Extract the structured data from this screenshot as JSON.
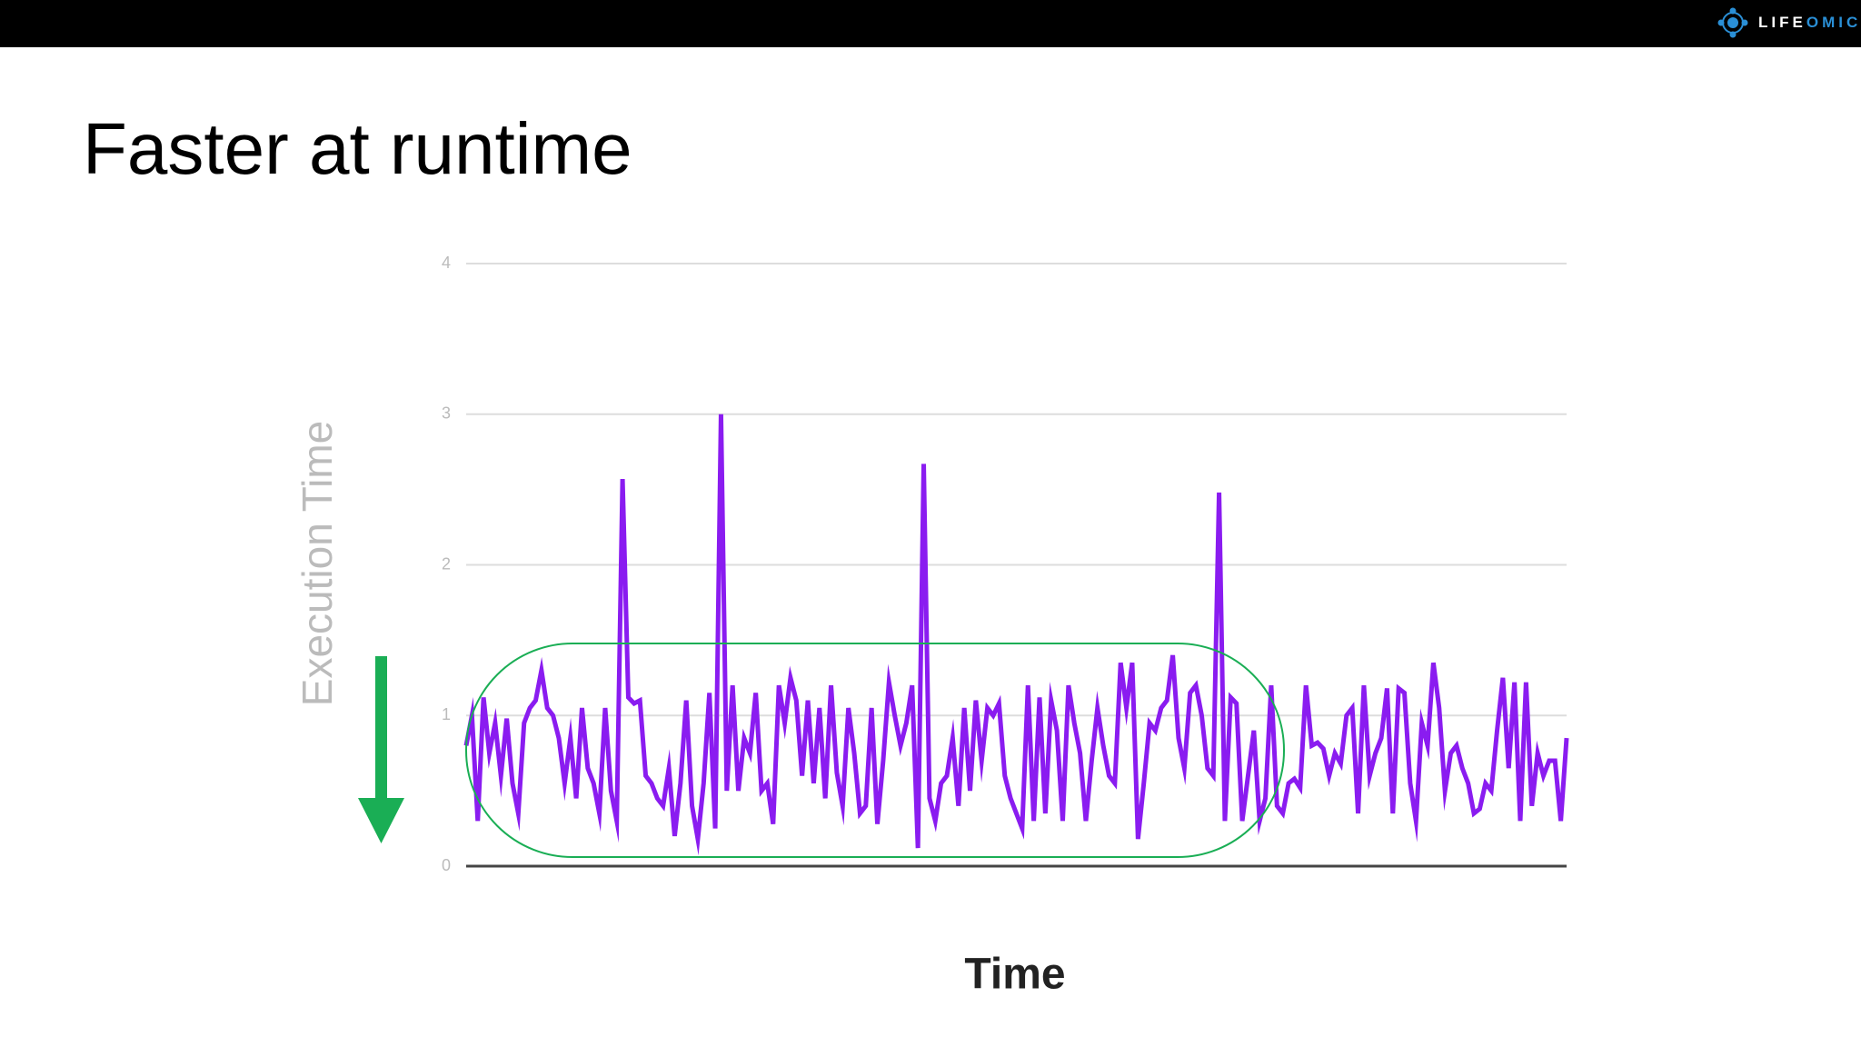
{
  "header": {
    "logo_text": [
      "LIFE",
      "OMIC"
    ]
  },
  "chart_data": {
    "type": "line",
    "title": "Faster at runtime",
    "y_label": "Execution Time",
    "x_label": "Time",
    "color": "#8a1cf0",
    "ylim": [
      0,
      4
    ],
    "yticks": [
      0,
      1,
      2,
      3,
      4
    ],
    "grid": true,
    "values": [
      0.8,
      1.0,
      0.3,
      1.12,
      0.75,
      0.95,
      0.6,
      0.98,
      0.55,
      0.35,
      0.95,
      1.05,
      1.1,
      1.3,
      1.05,
      1.0,
      0.85,
      0.55,
      0.85,
      0.45,
      1.05,
      0.65,
      0.55,
      0.35,
      1.05,
      0.5,
      0.3,
      2.57,
      1.12,
      1.08,
      1.1,
      0.6,
      0.55,
      0.45,
      0.4,
      0.65,
      0.2,
      0.55,
      1.1,
      0.4,
      0.18,
      0.55,
      1.15,
      0.25,
      3.0,
      0.5,
      1.2,
      0.5,
      0.85,
      0.75,
      1.15,
      0.5,
      0.55,
      0.28,
      1.2,
      0.95,
      1.25,
      1.1,
      0.6,
      1.1,
      0.55,
      1.05,
      0.45,
      1.2,
      0.62,
      0.4,
      1.05,
      0.75,
      0.35,
      0.4,
      1.05,
      0.28,
      0.7,
      1.22,
      1.0,
      0.8,
      0.95,
      1.2,
      0.12,
      2.67,
      0.45,
      0.3,
      0.55,
      0.6,
      0.85,
      0.4,
      1.05,
      0.5,
      1.1,
      0.7,
      1.05,
      1.0,
      1.08,
      0.6,
      0.45,
      0.35,
      0.25,
      1.2,
      0.3,
      1.12,
      0.35,
      1.1,
      0.9,
      0.3,
      1.2,
      0.95,
      0.75,
      0.3,
      0.7,
      1.05,
      0.8,
      0.6,
      0.55,
      1.35,
      1.05,
      1.35,
      0.18,
      0.55,
      0.95,
      0.9,
      1.05,
      1.1,
      1.4,
      0.85,
      0.65,
      1.15,
      1.2,
      1.0,
      0.65,
      0.6,
      2.48,
      0.3,
      1.12,
      1.08,
      0.3,
      0.6,
      0.9,
      0.3,
      0.45,
      1.2,
      0.4,
      0.35,
      0.55,
      0.58,
      0.52,
      1.2,
      0.8,
      0.82,
      0.78,
      0.6,
      0.75,
      0.68,
      1.0,
      1.05,
      0.35,
      1.2,
      0.6,
      0.75,
      0.85,
      1.18,
      0.35,
      1.18,
      1.15,
      0.55,
      0.3,
      0.95,
      0.8,
      1.35,
      1.05,
      0.5,
      0.75,
      0.8,
      0.65,
      0.55,
      0.35,
      0.38,
      0.55,
      0.5,
      0.9,
      1.25,
      0.65,
      1.22,
      0.3,
      1.22,
      0.4,
      0.75,
      0.6,
      0.7,
      0.7,
      0.3,
      0.85
    ]
  }
}
